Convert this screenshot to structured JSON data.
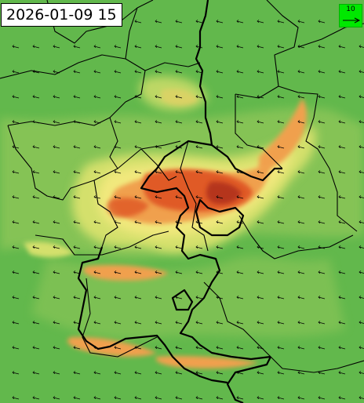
{
  "timestamp": "2026-01-09 15",
  "wind_scale": {
    "value": "10",
    "color": "#00e800"
  },
  "colors": {
    "low": "#62b84c",
    "mid_low": "#8ec659",
    "mid": "#d4e06c",
    "yellow": "#f1e87d",
    "orange": "#f0a04e",
    "high": "#e05a28",
    "peak": "#b5341c",
    "border": "#000000"
  },
  "wind_field": {
    "direction": "west",
    "arrow_color": "#000000"
  }
}
